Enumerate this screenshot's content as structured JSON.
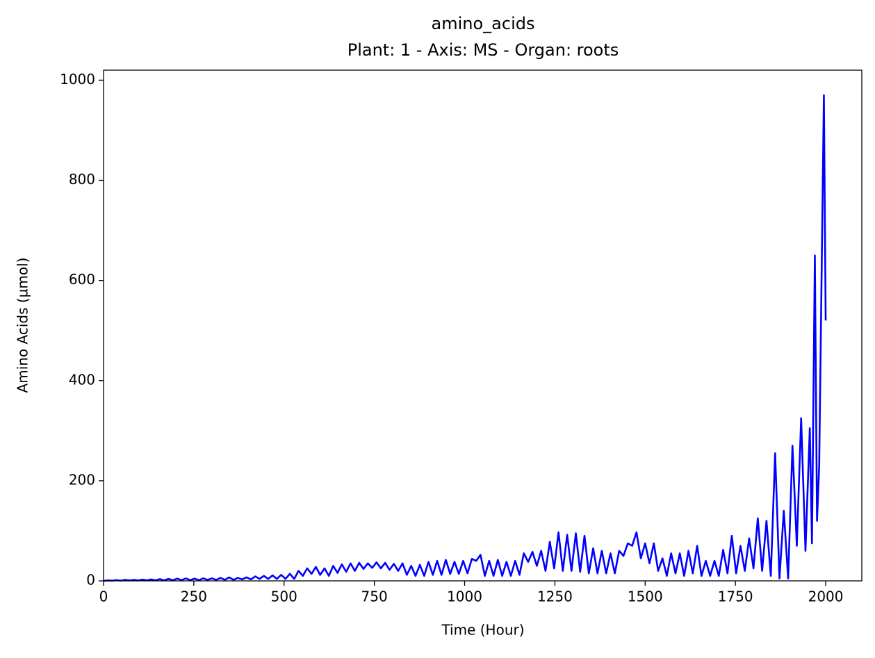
{
  "chart_data": {
    "type": "line",
    "title": "amino_acids",
    "subtitle": "Plant: 1 - Axis: MS - Organ: roots",
    "x_label": "Time (Hour)",
    "y_label": "Amino Acids (µmol)",
    "xlim": [
      0,
      2100
    ],
    "ylim": [
      0,
      1020
    ],
    "xticks": [
      0,
      250,
      500,
      750,
      1000,
      1250,
      1500,
      1750,
      2000
    ],
    "yticks": [
      0,
      200,
      400,
      600,
      800,
      1000
    ],
    "grid": false,
    "series": [
      {
        "color": "#0000ff",
        "x": [
          0,
          12,
          24,
          36,
          48,
          60,
          72,
          84,
          96,
          108,
          120,
          132,
          144,
          156,
          168,
          180,
          192,
          204,
          216,
          228,
          240,
          252,
          264,
          276,
          288,
          300,
          312,
          324,
          336,
          348,
          360,
          372,
          384,
          396,
          408,
          420,
          432,
          444,
          456,
          468,
          480,
          492,
          504,
          516,
          528,
          540,
          552,
          564,
          576,
          588,
          600,
          612,
          624,
          636,
          648,
          660,
          672,
          684,
          696,
          708,
          720,
          732,
          744,
          756,
          768,
          780,
          792,
          804,
          816,
          828,
          840,
          852,
          864,
          876,
          888,
          900,
          912,
          924,
          936,
          948,
          960,
          972,
          984,
          996,
          1008,
          1020,
          1032,
          1044,
          1056,
          1068,
          1080,
          1092,
          1104,
          1116,
          1128,
          1140,
          1152,
          1164,
          1176,
          1188,
          1200,
          1212,
          1224,
          1236,
          1248,
          1260,
          1272,
          1284,
          1296,
          1308,
          1320,
          1332,
          1344,
          1356,
          1368,
          1380,
          1392,
          1404,
          1416,
          1428,
          1440,
          1452,
          1464,
          1476,
          1488,
          1500,
          1512,
          1524,
          1536,
          1548,
          1560,
          1572,
          1584,
          1596,
          1608,
          1620,
          1632,
          1644,
          1656,
          1668,
          1680,
          1692,
          1704,
          1716,
          1728,
          1740,
          1752,
          1764,
          1776,
          1788,
          1800,
          1812,
          1824,
          1836,
          1848,
          1860,
          1872,
          1884,
          1896,
          1908,
          1920,
          1932,
          1944,
          1956,
          1962,
          1970,
          1976,
          1982,
          1995,
          2000
        ],
        "values": [
          0,
          1,
          0.5,
          1.5,
          0.5,
          2,
          0.8,
          2,
          0.8,
          2.5,
          1,
          3,
          1,
          3.5,
          1,
          4,
          1.2,
          4.5,
          1.5,
          5,
          1.5,
          4.5,
          1.5,
          5,
          2,
          5,
          2,
          6,
          2,
          7,
          2,
          6,
          3,
          7,
          3,
          9,
          4,
          10,
          4,
          11,
          4,
          12,
          4,
          14,
          4,
          20,
          10,
          25,
          14,
          28,
          12,
          25,
          10,
          30,
          16,
          33,
          18,
          35,
          20,
          36,
          24,
          35,
          26,
          37,
          25,
          36,
          22,
          34,
          20,
          35,
          12,
          30,
          10,
          32,
          10,
          38,
          12,
          40,
          12,
          42,
          14,
          38,
          14,
          40,
          15,
          44,
          40,
          52,
          10,
          40,
          10,
          42,
          10,
          38,
          10,
          40,
          12,
          55,
          38,
          58,
          30,
          60,
          20,
          78,
          25,
          97,
          20,
          92,
          20,
          95,
          18,
          90,
          15,
          65,
          15,
          60,
          15,
          55,
          15,
          60,
          50,
          75,
          70,
          97,
          45,
          75,
          35,
          75,
          20,
          45,
          10,
          55,
          15,
          55,
          10,
          60,
          15,
          70,
          10,
          40,
          10,
          40,
          10,
          62,
          15,
          90,
          15,
          70,
          20,
          85,
          25,
          125,
          20,
          120,
          10,
          255,
          5,
          140,
          5,
          270,
          70,
          325,
          60,
          305,
          75,
          650,
          120,
          230,
          970,
          520
        ]
      }
    ]
  }
}
